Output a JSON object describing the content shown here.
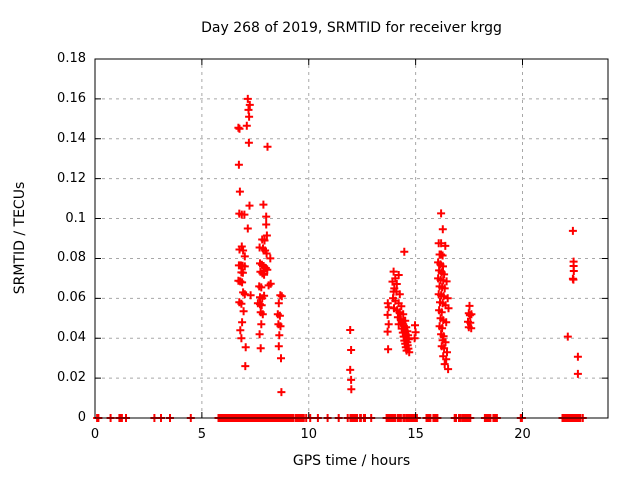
{
  "chart_data": {
    "type": "scatter",
    "title": "Day 268 of 2019, SRMTID for receiver krgg",
    "xlabel": "GPS time / hours",
    "ylabel": "SRMTID / TECUs",
    "xlim": [
      0,
      24
    ],
    "ylim": [
      0,
      0.18
    ],
    "xticks": {
      "values": [
        0,
        5,
        10,
        15,
        20
      ],
      "labels": [
        "0",
        "5",
        "10",
        "15",
        "20"
      ]
    },
    "yticks": {
      "values": [
        0,
        0.02,
        0.04,
        0.06,
        0.08,
        0.1,
        0.12,
        0.14,
        0.16,
        0.18
      ],
      "labels": [
        "0",
        "0.02",
        "0.04",
        "0.06",
        "0.08",
        "0.1",
        "0.12",
        "0.14",
        "0.16",
        "0.18"
      ]
    },
    "grid": {
      "shown": true,
      "style": "dashed",
      "color": "#a8a8a8"
    },
    "legend": "none",
    "marker": {
      "shape": "plus",
      "color": "#ff0000",
      "size": 9
    },
    "series": [
      {
        "name": "SRMTID",
        "points": [
          [
            7.15,
            0.16
          ],
          [
            7.24,
            0.157
          ],
          [
            7.18,
            0.1545
          ],
          [
            7.21,
            0.151
          ],
          [
            7.1,
            0.1465
          ],
          [
            6.71,
            0.1455
          ],
          [
            6.76,
            0.145
          ],
          [
            7.2,
            0.138
          ],
          [
            8.07,
            0.136
          ],
          [
            6.73,
            0.127
          ],
          [
            6.78,
            0.1135
          ],
          [
            7.23,
            0.1065
          ],
          [
            7.88,
            0.107
          ],
          [
            6.75,
            0.1025
          ],
          [
            6.87,
            0.102
          ],
          [
            6.99,
            0.102
          ],
          [
            8.01,
            0.101
          ],
          [
            8.01,
            0.097
          ],
          [
            7.15,
            0.095
          ],
          [
            8.04,
            0.0915
          ],
          [
            7.82,
            0.0895
          ],
          [
            7.93,
            0.089
          ],
          [
            6.87,
            0.086
          ],
          [
            6.76,
            0.0845
          ],
          [
            6.93,
            0.084
          ],
          [
            7.7,
            0.0855
          ],
          [
            7.86,
            0.085
          ],
          [
            7.96,
            0.084
          ],
          [
            8.03,
            0.0825
          ],
          [
            7.01,
            0.081
          ],
          [
            8.2,
            0.08
          ],
          [
            6.73,
            0.0765
          ],
          [
            6.82,
            0.0765
          ],
          [
            6.9,
            0.0763
          ],
          [
            7.01,
            0.076
          ],
          [
            7.72,
            0.0775
          ],
          [
            7.81,
            0.0768
          ],
          [
            7.89,
            0.0762
          ],
          [
            7.99,
            0.0752
          ],
          [
            8.06,
            0.0743
          ],
          [
            6.85,
            0.073
          ],
          [
            6.92,
            0.0728
          ],
          [
            7.74,
            0.0733
          ],
          [
            7.83,
            0.0725
          ],
          [
            7.91,
            0.0718
          ],
          [
            6.71,
            0.0688
          ],
          [
            6.8,
            0.0685
          ],
          [
            6.88,
            0.068
          ],
          [
            7.68,
            0.066
          ],
          [
            7.78,
            0.0655
          ],
          [
            8.12,
            0.0665
          ],
          [
            8.22,
            0.0673
          ],
          [
            6.93,
            0.063
          ],
          [
            7.01,
            0.062
          ],
          [
            7.28,
            0.0615
          ],
          [
            7.72,
            0.0605
          ],
          [
            7.82,
            0.06
          ],
          [
            7.91,
            0.0613
          ],
          [
            8.67,
            0.0615
          ],
          [
            8.74,
            0.061
          ],
          [
            6.75,
            0.058
          ],
          [
            6.85,
            0.0573
          ],
          [
            7.62,
            0.0575
          ],
          [
            7.72,
            0.057
          ],
          [
            7.8,
            0.0565
          ],
          [
            8.6,
            0.0575
          ],
          [
            6.95,
            0.0535
          ],
          [
            7.75,
            0.053
          ],
          [
            7.85,
            0.052
          ],
          [
            8.55,
            0.052
          ],
          [
            8.65,
            0.0513
          ],
          [
            6.88,
            0.048
          ],
          [
            7.78,
            0.047
          ],
          [
            8.58,
            0.047
          ],
          [
            8.68,
            0.046
          ],
          [
            6.8,
            0.044
          ],
          [
            7.7,
            0.042
          ],
          [
            8.62,
            0.0415
          ],
          [
            6.85,
            0.04
          ],
          [
            7.05,
            0.0355
          ],
          [
            7.75,
            0.035
          ],
          [
            8.6,
            0.036
          ],
          [
            8.7,
            0.03
          ],
          [
            7.03,
            0.026
          ],
          [
            8.72,
            0.013
          ],
          [
            11.94,
            0.0441
          ],
          [
            11.98,
            0.0341
          ],
          [
            11.94,
            0.0241
          ],
          [
            11.98,
            0.0191
          ],
          [
            11.99,
            0.0144
          ],
          [
            13.7,
            0.0575
          ],
          [
            13.74,
            0.0555
          ],
          [
            13.69,
            0.0517
          ],
          [
            13.74,
            0.047
          ],
          [
            13.69,
            0.0433
          ],
          [
            13.71,
            0.0345
          ],
          [
            13.97,
            0.0734
          ],
          [
            14.21,
            0.0717
          ],
          [
            14.05,
            0.07
          ],
          [
            13.92,
            0.0684
          ],
          [
            14.12,
            0.0672
          ],
          [
            14.0,
            0.065
          ],
          [
            14.1,
            0.0634
          ],
          [
            13.97,
            0.0634
          ],
          [
            14.26,
            0.062
          ],
          [
            13.94,
            0.06
          ],
          [
            14.05,
            0.0588
          ],
          [
            14.21,
            0.0575
          ],
          [
            14.33,
            0.056
          ],
          [
            13.99,
            0.055
          ],
          [
            14.12,
            0.054
          ],
          [
            14.24,
            0.053
          ],
          [
            14.47,
            0.0834
          ],
          [
            14.42,
            0.052
          ],
          [
            14.17,
            0.0505
          ],
          [
            14.3,
            0.0495
          ],
          [
            14.51,
            0.0488
          ],
          [
            14.38,
            0.048
          ],
          [
            14.21,
            0.047
          ],
          [
            14.45,
            0.0462
          ],
          [
            14.56,
            0.0455
          ],
          [
            14.35,
            0.0448
          ],
          [
            14.49,
            0.044
          ],
          [
            14.61,
            0.0435
          ],
          [
            14.4,
            0.0428
          ],
          [
            14.54,
            0.042
          ],
          [
            14.65,
            0.0415
          ],
          [
            14.44,
            0.0408
          ],
          [
            14.58,
            0.04
          ],
          [
            14.68,
            0.0395
          ],
          [
            14.47,
            0.0388
          ],
          [
            14.61,
            0.038
          ],
          [
            14.51,
            0.0372
          ],
          [
            14.63,
            0.0365
          ],
          [
            14.54,
            0.0355
          ],
          [
            14.66,
            0.0348
          ],
          [
            14.58,
            0.0338
          ],
          [
            14.7,
            0.033
          ],
          [
            14.97,
            0.0465
          ],
          [
            15.0,
            0.043
          ],
          [
            14.95,
            0.04
          ],
          [
            16.19,
            0.1026
          ],
          [
            16.27,
            0.0946
          ],
          [
            16.08,
            0.0876
          ],
          [
            16.19,
            0.0876
          ],
          [
            16.39,
            0.0863
          ],
          [
            16.12,
            0.082
          ],
          [
            16.19,
            0.082
          ],
          [
            16.26,
            0.0815
          ],
          [
            16.05,
            0.078
          ],
          [
            16.16,
            0.077
          ],
          [
            16.28,
            0.076
          ],
          [
            16.1,
            0.074
          ],
          [
            16.22,
            0.073
          ],
          [
            16.33,
            0.072
          ],
          [
            16.05,
            0.07
          ],
          [
            16.17,
            0.0692
          ],
          [
            16.29,
            0.069
          ],
          [
            16.45,
            0.0685
          ],
          [
            16.12,
            0.066
          ],
          [
            16.24,
            0.0655
          ],
          [
            16.36,
            0.065
          ],
          [
            16.08,
            0.062
          ],
          [
            16.19,
            0.0615
          ],
          [
            16.31,
            0.061
          ],
          [
            16.5,
            0.06
          ],
          [
            16.14,
            0.058
          ],
          [
            16.26,
            0.0575
          ],
          [
            16.4,
            0.0565
          ],
          [
            16.54,
            0.055
          ],
          [
            16.1,
            0.054
          ],
          [
            16.22,
            0.053
          ],
          [
            16.17,
            0.05
          ],
          [
            16.29,
            0.049
          ],
          [
            16.43,
            0.048
          ],
          [
            16.12,
            0.046
          ],
          [
            16.24,
            0.045
          ],
          [
            16.19,
            0.042
          ],
          [
            16.31,
            0.041
          ],
          [
            16.26,
            0.039
          ],
          [
            16.4,
            0.038
          ],
          [
            16.22,
            0.036
          ],
          [
            16.33,
            0.035
          ],
          [
            16.47,
            0.033
          ],
          [
            16.29,
            0.031
          ],
          [
            16.43,
            0.0295
          ],
          [
            16.36,
            0.027
          ],
          [
            16.52,
            0.0245
          ],
          [
            17.52,
            0.0562
          ],
          [
            17.49,
            0.0525
          ],
          [
            17.61,
            0.052
          ],
          [
            17.54,
            0.0515
          ],
          [
            17.45,
            0.0483
          ],
          [
            17.56,
            0.0478
          ],
          [
            17.49,
            0.0455
          ],
          [
            17.6,
            0.045
          ],
          [
            22.36,
            0.0938
          ],
          [
            22.39,
            0.0784
          ],
          [
            22.39,
            0.0762
          ],
          [
            22.4,
            0.0737
          ],
          [
            22.36,
            0.0698
          ],
          [
            22.38,
            0.0694
          ],
          [
            22.12,
            0.0408
          ],
          [
            22.59,
            0.0307
          ],
          [
            22.59,
            0.0221
          ]
        ]
      }
    ],
    "zero_marker_hours": [
      0.1,
      0.16,
      0.73,
      1.14,
      1.2,
      1.26,
      1.45,
      2.78,
      3.09,
      3.51,
      4.48,
      5.78,
      5.84,
      5.9,
      5.96,
      6.02,
      6.08,
      6.14,
      6.2,
      6.26,
      6.32,
      6.38,
      6.44,
      6.5,
      6.56,
      6.62,
      6.68,
      6.74,
      6.8,
      6.86,
      6.92,
      7.0,
      7.08,
      7.16,
      7.24,
      7.32,
      7.4,
      7.48,
      7.56,
      7.63,
      7.69,
      7.75,
      7.81,
      7.87,
      7.93,
      7.99,
      8.05,
      8.1,
      8.18,
      8.26,
      8.34,
      8.42,
      8.5,
      8.55,
      8.61,
      8.67,
      8.73,
      8.79,
      8.85,
      8.91,
      8.97,
      9.03,
      9.09,
      9.15,
      9.21,
      9.27,
      9.38,
      9.46,
      9.54,
      9.62,
      9.7,
      9.77,
      9.88,
      10.07,
      10.43,
      10.88,
      11.4,
      11.82,
      11.95,
      12.03,
      12.11,
      12.19,
      12.26,
      12.4,
      12.44,
      12.58,
      12.63,
      12.92,
      13.64,
      13.7,
      13.76,
      13.82,
      13.88,
      13.94,
      14.0,
      14.05,
      14.17,
      14.24,
      14.31,
      14.43,
      14.48,
      14.58,
      14.65,
      14.72,
      14.79,
      14.86,
      14.93,
      15.0,
      15.06,
      15.51,
      15.57,
      15.63,
      15.69,
      15.83,
      15.89,
      15.96,
      16.02,
      16.83,
      16.89,
      17.03,
      17.09,
      17.19,
      17.26,
      17.33,
      17.4,
      17.48,
      17.56,
      18.24,
      18.31,
      18.38,
      18.45,
      18.5,
      18.64,
      18.72,
      18.8,
      19.92,
      19.97,
      21.87,
      21.93,
      21.99,
      22.05,
      22.11,
      22.17,
      22.23,
      22.29,
      22.35,
      22.41,
      22.47,
      22.53,
      22.59,
      22.65,
      22.71,
      22.82
    ]
  }
}
